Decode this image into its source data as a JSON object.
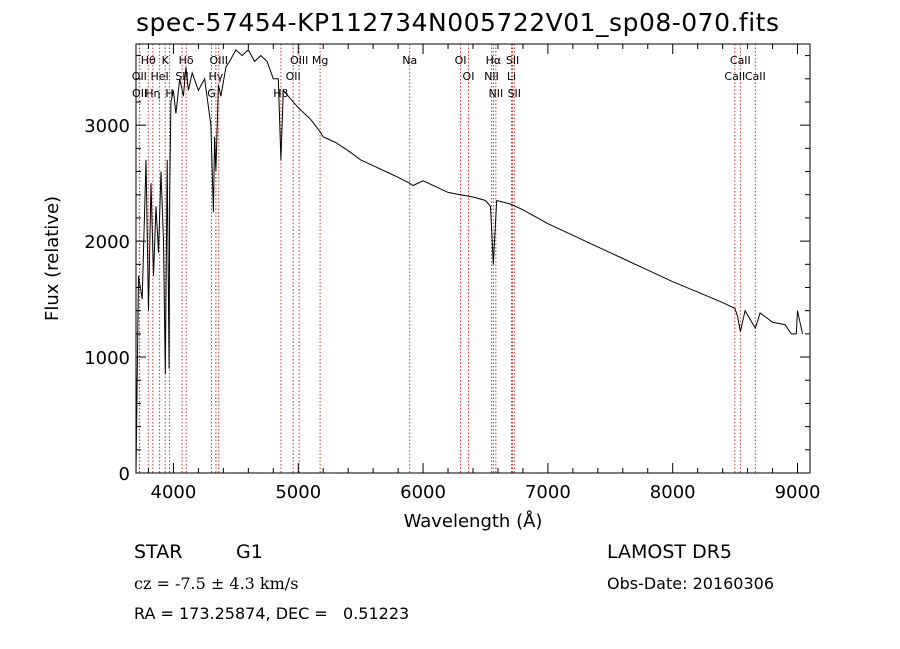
{
  "chart_data": {
    "type": "line",
    "title": "spec-57454-KP112734N005722V01_sp08-070.fits",
    "xlabel": "Wavelength (Å)",
    "ylabel": "Flux (relative)",
    "xlim": [
      3700,
      9100
    ],
    "ylim": [
      0,
      3700
    ],
    "x_ticks": [
      4000,
      5000,
      6000,
      7000,
      8000,
      9000
    ],
    "y_ticks": [
      0,
      1000,
      2000,
      3000
    ],
    "grid": false,
    "series": [
      {
        "x": [
          3700,
          3720,
          3750,
          3780,
          3800,
          3820,
          3840,
          3860,
          3880,
          3900,
          3920,
          3935,
          3950,
          3965,
          3970,
          3980,
          4000,
          4020,
          4050,
          4080,
          4100,
          4120,
          4150,
          4200,
          4250,
          4300,
          4320,
          4330,
          4340,
          4360,
          4380,
          4420,
          4450,
          4500,
          4550,
          4600,
          4650,
          4700,
          4750,
          4800,
          4840,
          4861,
          4880,
          4920,
          5000,
          5100,
          5170,
          5200,
          5300,
          5400,
          5500,
          5600,
          5700,
          5800,
          5890,
          5920,
          6000,
          6100,
          6200,
          6300,
          6400,
          6500,
          6540,
          6563,
          6590,
          6700,
          6800,
          7000,
          7200,
          7400,
          7600,
          7800,
          8000,
          8200,
          8400,
          8498,
          8520,
          8542,
          8580,
          8662,
          8700,
          8800,
          8900,
          8950,
          8990,
          9000,
          9020,
          9040
        ],
        "y": [
          0,
          1700,
          1500,
          2700,
          1400,
          2500,
          1700,
          2300,
          1900,
          2600,
          2000,
          850,
          2700,
          900,
          2400,
          3200,
          3300,
          3100,
          3400,
          3250,
          3500,
          3300,
          3450,
          3300,
          3400,
          3000,
          2250,
          2900,
          2600,
          3350,
          3250,
          3500,
          3550,
          3650,
          3600,
          3650,
          3550,
          3600,
          3550,
          3400,
          3400,
          2700,
          3300,
          3250,
          3150,
          3050,
          2950,
          2900,
          2850,
          2780,
          2700,
          2650,
          2600,
          2550,
          2500,
          2480,
          2520,
          2470,
          2420,
          2400,
          2380,
          2350,
          2300,
          1800,
          2350,
          2320,
          2270,
          2150,
          2050,
          1950,
          1850,
          1750,
          1650,
          1560,
          1470,
          1420,
          1350,
          1220,
          1400,
          1250,
          1380,
          1300,
          1280,
          1200,
          1200,
          1400,
          1300,
          1200
        ]
      }
    ],
    "annotations": [
      {
        "label": "Hθ",
        "x": 3798
      },
      {
        "label": "OII",
        "x": 3727
      },
      {
        "label": "OII",
        "x": 3729
      },
      {
        "label": "K",
        "x": 3934
      },
      {
        "label": "HeI",
        "x": 3889
      },
      {
        "label": "Hη",
        "x": 3835
      },
      {
        "label": "Hδ",
        "x": 4102
      },
      {
        "label": "SII",
        "x": 4069
      },
      {
        "label": "H",
        "x": 3969
      },
      {
        "label": "OIII",
        "x": 4363
      },
      {
        "label": "Hγ",
        "x": 4340
      },
      {
        "label": "G",
        "x": 4305
      },
      {
        "label": "OIII",
        "x": 5007
      },
      {
        "label": "OII",
        "x": 4959
      },
      {
        "label": "Hβ",
        "x": 4861
      },
      {
        "label": "Mg",
        "x": 5175
      },
      {
        "label": "Na",
        "x": 5893
      },
      {
        "label": "OI",
        "x": 6300
      },
      {
        "label": "OI",
        "x": 6364
      },
      {
        "label": "Hα",
        "x": 6563
      },
      {
        "label": "NII",
        "x": 6548
      },
      {
        "label": "NII",
        "x": 6583
      },
      {
        "label": "SII",
        "x": 6717
      },
      {
        "label": "Li",
        "x": 6708
      },
      {
        "label": "SII",
        "x": 6731
      },
      {
        "label": "CaII",
        "x": 8542
      },
      {
        "label": "CaII",
        "x": 8498
      },
      {
        "label": "CaII",
        "x": 8662
      }
    ]
  },
  "info": {
    "object_class": "STAR",
    "subclass": "G1",
    "survey": "LAMOST DR5",
    "redshift": "cz = -7.5 ± 4.3 km/s",
    "obs_date": "Obs-Date: 20160306",
    "coords": "RA = 173.25874, DEC =   0.51223"
  },
  "colors": {
    "line_markers": "#cc3333",
    "spectrum": "#000000"
  }
}
